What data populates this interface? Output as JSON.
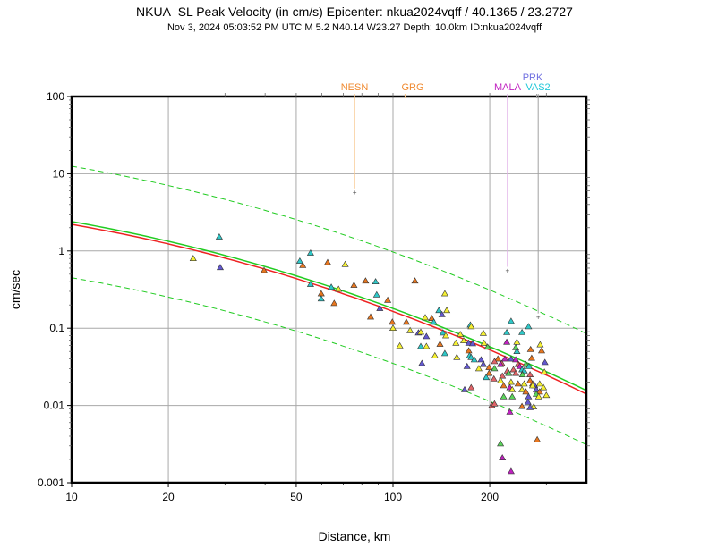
{
  "chart_data": {
    "type": "scatter",
    "title": "NKUA–SL Peak Velocity (in cm/s) Epicenter: nkua2024vqff / 40.1365 / 23.2727",
    "subtitle": "Nov  3, 2024 05:03:52 PM UTC   M 5.2   N40.14 W23.27   Depth: 10.0km   ID:nkua2024vqff",
    "xlabel": "Distance, km",
    "ylabel": "cm/sec",
    "xscale": "log",
    "yscale": "log",
    "xlim": [
      10,
      400
    ],
    "ylim": [
      0.001,
      100
    ],
    "grid": true,
    "xticks": [
      {
        "v": 10,
        "label": "10"
      },
      {
        "v": 20,
        "label": "20"
      },
      {
        "v": 50,
        "label": "50"
      },
      {
        "v": 100,
        "label": "100"
      },
      {
        "v": 200,
        "label": "200"
      }
    ],
    "yticks": [
      {
        "v": 100,
        "label": "100"
      },
      {
        "v": 10,
        "label": "10"
      },
      {
        "v": 1,
        "label": "1"
      },
      {
        "v": 0.1,
        "label": "0.1"
      },
      {
        "v": 0.01,
        "label": "0.01"
      },
      {
        "v": 0.001,
        "label": "0.001"
      }
    ],
    "colors": {
      "yellow": "#f5f032",
      "orange": "#e8761e",
      "cyan": "#2ec8c8",
      "blue": "#6358d0",
      "magenta": "#c020c0",
      "salmon": "#e06468",
      "green": "#5ad45a",
      "median": "#22cc22",
      "fit": "#ee2222"
    },
    "curves": [
      {
        "name": "Reference median",
        "style": "solid",
        "color": "median",
        "x": [
          10,
          100,
          400
        ],
        "y": [
          2.4,
          0.18,
          0.0156
        ]
      },
      {
        "name": "Fit",
        "style": "solid",
        "color": "fit",
        "x": [
          10,
          100,
          400
        ],
        "y": [
          2.21,
          0.165,
          0.014
        ]
      },
      {
        "name": "Upper bound",
        "style": "dashed",
        "color": "median",
        "x": [
          10,
          100,
          400
        ],
        "y": [
          12.5,
          0.97,
          0.085
        ]
      },
      {
        "name": "Lower bound",
        "style": "dashed",
        "color": "median",
        "x": [
          10,
          100,
          400
        ],
        "y": [
          0.45,
          0.035,
          0.0031
        ]
      }
    ],
    "stations": [
      {
        "label": "NESN",
        "color": "#f08a30",
        "line": "#f8c890",
        "x": 76,
        "y": 5.8
      },
      {
        "label": "GRG",
        "color": "#f08a30",
        "line": "#f8c890",
        "x": 109,
        "y": null
      },
      {
        "label": "MALA",
        "color": "#c020c0",
        "line": "#e0b0e8",
        "x": 227,
        "y": 0.56
      },
      {
        "label": "PRK",
        "color": "#7070e0",
        "line": "#a0a0a0",
        "x": 280,
        "y": null
      },
      {
        "label": "VAS2",
        "color": "#20c8d8",
        "line": "#a0a0a0",
        "x": 283,
        "y": 0.14
      }
    ],
    "points": [
      [
        23.9,
        0.8,
        "yellow"
      ],
      [
        28.8,
        1.52,
        "cyan"
      ],
      [
        29.0,
        0.61,
        "blue"
      ],
      [
        39.7,
        0.56,
        "orange"
      ],
      [
        51.3,
        0.74,
        "cyan"
      ],
      [
        55.4,
        0.94,
        "cyan"
      ],
      [
        52.4,
        0.65,
        "orange"
      ],
      [
        62.6,
        0.71,
        "orange"
      ],
      [
        71.0,
        0.67,
        "yellow"
      ],
      [
        55.4,
        0.37,
        "cyan"
      ],
      [
        64.3,
        0.34,
        "cyan"
      ],
      [
        67.7,
        0.32,
        "yellow"
      ],
      [
        75.6,
        0.36,
        "orange"
      ],
      [
        59.8,
        0.28,
        "orange"
      ],
      [
        59.8,
        0.24,
        "cyan"
      ],
      [
        65.6,
        0.21,
        "orange"
      ],
      [
        82.2,
        0.41,
        "orange"
      ],
      [
        88.3,
        0.4,
        "cyan"
      ],
      [
        117,
        0.41,
        "orange"
      ],
      [
        89.0,
        0.27,
        "cyan"
      ],
      [
        96.3,
        0.23,
        "orange"
      ],
      [
        91.0,
        0.18,
        "blue"
      ],
      [
        85.2,
        0.14,
        "orange"
      ],
      [
        145,
        0.28,
        "yellow"
      ],
      [
        99.5,
        0.12,
        "orange"
      ],
      [
        110,
        0.12,
        "orange"
      ],
      [
        100,
        0.1,
        "yellow"
      ],
      [
        113,
        0.093,
        "yellow"
      ],
      [
        120,
        0.087,
        "blue"
      ],
      [
        122,
        0.089,
        "yellow"
      ],
      [
        127,
        0.078,
        "blue"
      ],
      [
        139,
        0.17,
        "cyan"
      ],
      [
        142,
        0.15,
        "blue"
      ],
      [
        147,
        0.17,
        "yellow"
      ],
      [
        126,
        0.137,
        "yellow"
      ],
      [
        132,
        0.134,
        "orange"
      ],
      [
        134,
        0.12,
        "cyan"
      ],
      [
        143,
        0.087,
        "cyan"
      ],
      [
        146,
        0.08,
        "yellow"
      ],
      [
        140,
        0.062,
        "orange"
      ],
      [
        105,
        0.059,
        "yellow"
      ],
      [
        122,
        0.058,
        "cyan"
      ],
      [
        127,
        0.058,
        "yellow"
      ],
      [
        135,
        0.044,
        "yellow"
      ],
      [
        123,
        0.035,
        "blue"
      ],
      [
        174,
        0.11,
        "cyan"
      ],
      [
        233,
        0.123,
        "cyan"
      ],
      [
        264,
        0.105,
        "cyan"
      ],
      [
        175,
        0.105,
        "yellow"
      ],
      [
        191,
        0.086,
        "yellow"
      ],
      [
        162,
        0.083,
        "yellow"
      ],
      [
        226,
        0.088,
        "cyan"
      ],
      [
        252,
        0.088,
        "cyan"
      ],
      [
        226,
        0.066,
        "magenta"
      ],
      [
        243,
        0.066,
        "yellow"
      ],
      [
        166,
        0.069,
        "yellow"
      ],
      [
        157,
        0.064,
        "yellow"
      ],
      [
        172,
        0.064,
        "blue"
      ],
      [
        177,
        0.063,
        "blue"
      ],
      [
        192,
        0.064,
        "yellow"
      ],
      [
        197,
        0.057,
        "green"
      ],
      [
        241,
        0.056,
        "green"
      ],
      [
        243,
        0.05,
        "cyan"
      ],
      [
        172,
        0.051,
        "orange"
      ],
      [
        145,
        0.047,
        "cyan"
      ],
      [
        173,
        0.044,
        "cyan"
      ],
      [
        175,
        0.042,
        "cyan"
      ],
      [
        179,
        0.039,
        "cyan"
      ],
      [
        188,
        0.039,
        "blue"
      ],
      [
        191,
        0.034,
        "blue"
      ],
      [
        158,
        0.042,
        "yellow"
      ],
      [
        170,
        0.032,
        "blue"
      ],
      [
        185,
        0.03,
        "yellow"
      ],
      [
        199,
        0.031,
        "orange"
      ],
      [
        212,
        0.04,
        "orange"
      ],
      [
        207,
        0.037,
        "salmon"
      ],
      [
        218,
        0.035,
        "salmon"
      ],
      [
        233,
        0.04,
        "blue"
      ],
      [
        216,
        0.034,
        "magenta"
      ],
      [
        207,
        0.03,
        "green"
      ],
      [
        237,
        0.029,
        "salmon"
      ],
      [
        241,
        0.039,
        "magenta"
      ],
      [
        245,
        0.034,
        "salmon"
      ],
      [
        248,
        0.032,
        "magenta"
      ],
      [
        252,
        0.029,
        "cyan"
      ],
      [
        256,
        0.028,
        "cyan"
      ],
      [
        259,
        0.034,
        "green"
      ],
      [
        265,
        0.032,
        "cyan"
      ],
      [
        241,
        0.026,
        "salmon"
      ],
      [
        219,
        0.024,
        "salmon"
      ],
      [
        199,
        0.026,
        "orange"
      ],
      [
        195,
        0.023,
        "cyan"
      ],
      [
        206,
        0.022,
        "salmon"
      ],
      [
        253,
        0.025,
        "green"
      ],
      [
        267,
        0.025,
        "salmon"
      ],
      [
        216,
        0.021,
        "yellow"
      ],
      [
        221,
        0.018,
        "orange"
      ],
      [
        233,
        0.02,
        "yellow"
      ],
      [
        245,
        0.019,
        "orange"
      ],
      [
        256,
        0.019,
        "yellow"
      ],
      [
        267,
        0.021,
        "orange"
      ],
      [
        272,
        0.019,
        "orange"
      ],
      [
        276,
        0.018,
        "blue"
      ],
      [
        286,
        0.019,
        "yellow"
      ],
      [
        294,
        0.017,
        "yellow"
      ],
      [
        231,
        0.017,
        "magenta"
      ],
      [
        252,
        0.016,
        "yellow"
      ],
      [
        259,
        0.015,
        "orange"
      ],
      [
        272,
        0.018,
        "yellow"
      ],
      [
        279,
        0.016,
        "blue"
      ],
      [
        286,
        0.015,
        "orange"
      ],
      [
        279,
        0.014,
        "green"
      ],
      [
        284,
        0.013,
        "yellow"
      ],
      [
        264,
        0.013,
        "blue"
      ],
      [
        235,
        0.013,
        "green"
      ],
      [
        263,
        0.011,
        "blue"
      ],
      [
        274,
        0.0096,
        "yellow"
      ],
      [
        235,
        0.016,
        "yellow"
      ],
      [
        221,
        0.013,
        "green"
      ],
      [
        175,
        0.017,
        "salmon"
      ],
      [
        267,
        0.0094,
        "blue"
      ],
      [
        203,
        0.01,
        "salmon"
      ],
      [
        252,
        0.0097,
        "orange"
      ],
      [
        167,
        0.016,
        "blue"
      ],
      [
        207,
        0.0105,
        "salmon"
      ],
      [
        231,
        0.0082,
        "magenta"
      ],
      [
        216,
        0.0032,
        "green"
      ],
      [
        219,
        0.0021,
        "magenta"
      ],
      [
        233,
        0.0014,
        "magenta"
      ],
      [
        281,
        0.0036,
        "orange"
      ],
      [
        287,
        0.061,
        "yellow"
      ],
      [
        268,
        0.053,
        "orange"
      ],
      [
        290,
        0.051,
        "orange"
      ],
      [
        270,
        0.041,
        "orange"
      ],
      [
        297,
        0.036,
        "blue"
      ],
      [
        223,
        0.04,
        "magenta"
      ],
      [
        296,
        0.027,
        "yellow"
      ],
      [
        227,
        0.028,
        "salmon"
      ],
      [
        229,
        0.026,
        "green"
      ],
      [
        300,
        0.0135,
        "yellow"
      ]
    ]
  }
}
